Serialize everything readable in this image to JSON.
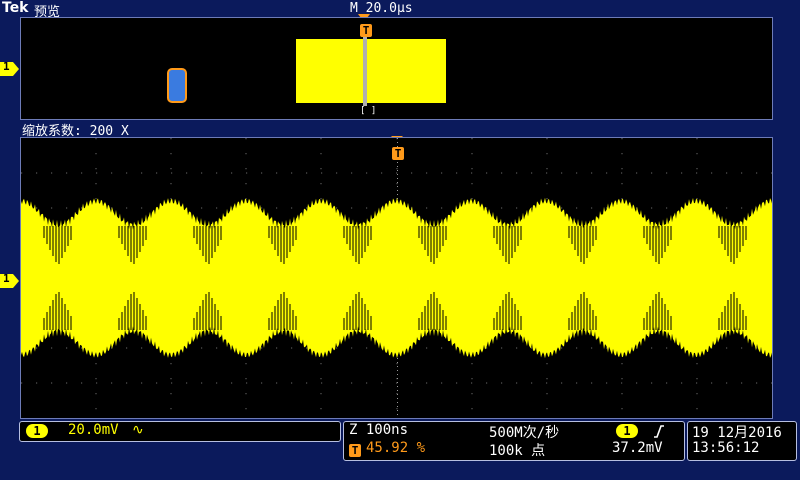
{
  "header": {
    "brand": "Tek",
    "mode_label": "预览",
    "timebase": "M 20.0µs"
  },
  "zoom": {
    "label": "缩放系数: 200 X"
  },
  "markers": {
    "channel": "1",
    "trigger": "T",
    "bracket": "[ ]"
  },
  "channel_status": {
    "channel": "1",
    "scale": "20.0mV",
    "coupling_icon": "∿"
  },
  "acquisition": {
    "zoom_timebase": "Z 100ns",
    "sample_rate": "500M次/秒",
    "trigger_badge": "T",
    "trigger_position": "45.92 %",
    "record_length": "100k 点",
    "trigger_channel": "1",
    "trigger_slope_icon": "rising-edge",
    "trigger_level": "37.2mV"
  },
  "datetime": {
    "date": "19 12月2016",
    "time": "13:56:12"
  },
  "colors": {
    "background": "#0b1a5c",
    "trace": "#ffff00",
    "trigger": "#ff9a1a",
    "zoom_window": "#3a7be0",
    "graticule": "#6d7bb8"
  }
}
